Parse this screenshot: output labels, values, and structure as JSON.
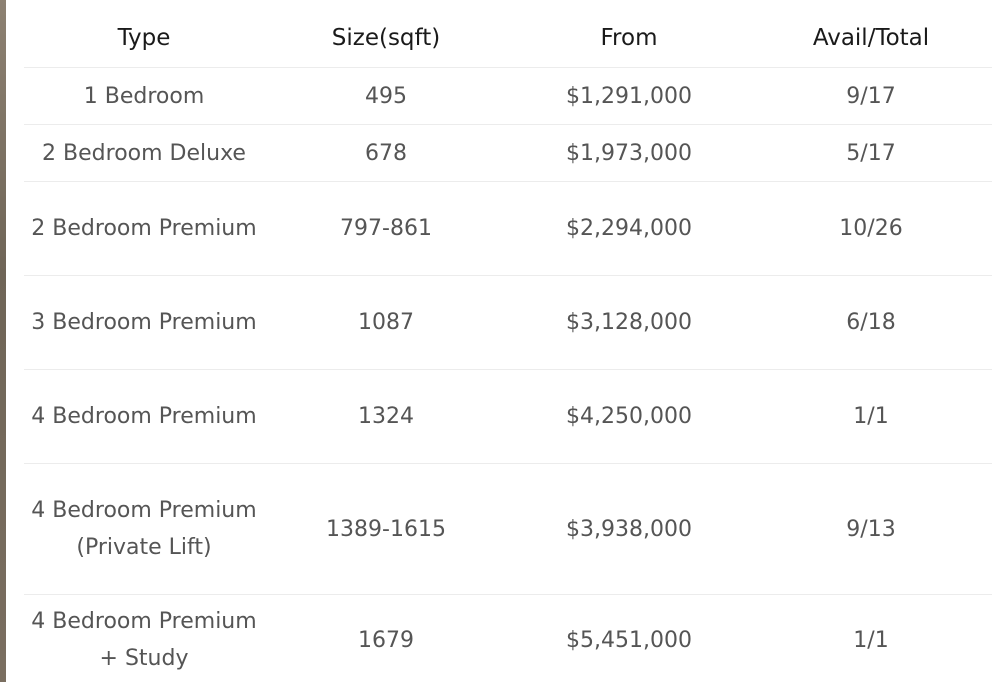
{
  "table": {
    "headers": [
      "Type",
      "Size(sqft)",
      "From",
      "Avail/Total"
    ],
    "rows": [
      {
        "type": "1 Bedroom",
        "size": "495",
        "from": "$1,291,000",
        "avail": "9/17"
      },
      {
        "type": "2 Bedroom Deluxe",
        "size": "678",
        "from": "$1,973,000",
        "avail": "5/17"
      },
      {
        "type": "2 Bedroom Premium",
        "size": "797-861",
        "from": "$2,294,000",
        "avail": "10/26"
      },
      {
        "type": "3 Bedroom Premium",
        "size": "1087",
        "from": "$3,128,000",
        "avail": "6/18"
      },
      {
        "type": "4 Bedroom Premium",
        "size": "1324",
        "from": "$4,250,000",
        "avail": "1/1"
      },
      {
        "type": "4 Bedroom Premium (Private Lift)",
        "size": "1389-1615",
        "from": "$3,938,000",
        "avail": "9/13"
      },
      {
        "type": "4 Bedroom Premium + Study",
        "size": "1679",
        "from": "$5,451,000",
        "avail": "1/1"
      }
    ]
  },
  "colors": {
    "header_text": "#1a1a1a",
    "cell_text": "#555555",
    "row_border": "#ececec",
    "left_strip": "#7a6e60"
  }
}
